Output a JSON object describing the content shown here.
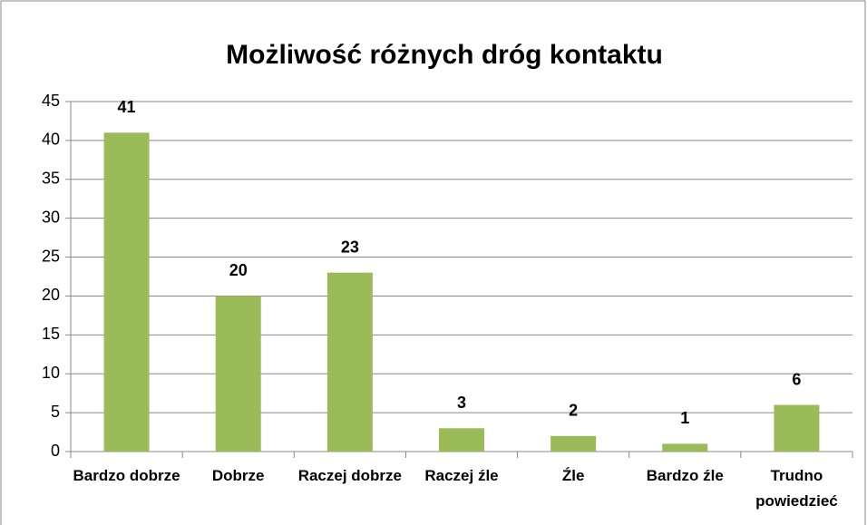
{
  "chart_data": {
    "type": "bar",
    "title": "Możliwość różnych dróg kontaktu",
    "categories": [
      "Bardzo dobrze",
      "Dobrze",
      "Raczej dobrze",
      "Raczej źle",
      "Źle",
      "Bardzo źle",
      "Trudno powiedzieć"
    ],
    "values": [
      41,
      20,
      23,
      3,
      2,
      1,
      6
    ],
    "color": "#9bbb59",
    "ylim": [
      0,
      45
    ],
    "yticks": [
      0,
      5,
      10,
      15,
      20,
      25,
      30,
      35,
      40,
      45
    ],
    "grid": true
  }
}
